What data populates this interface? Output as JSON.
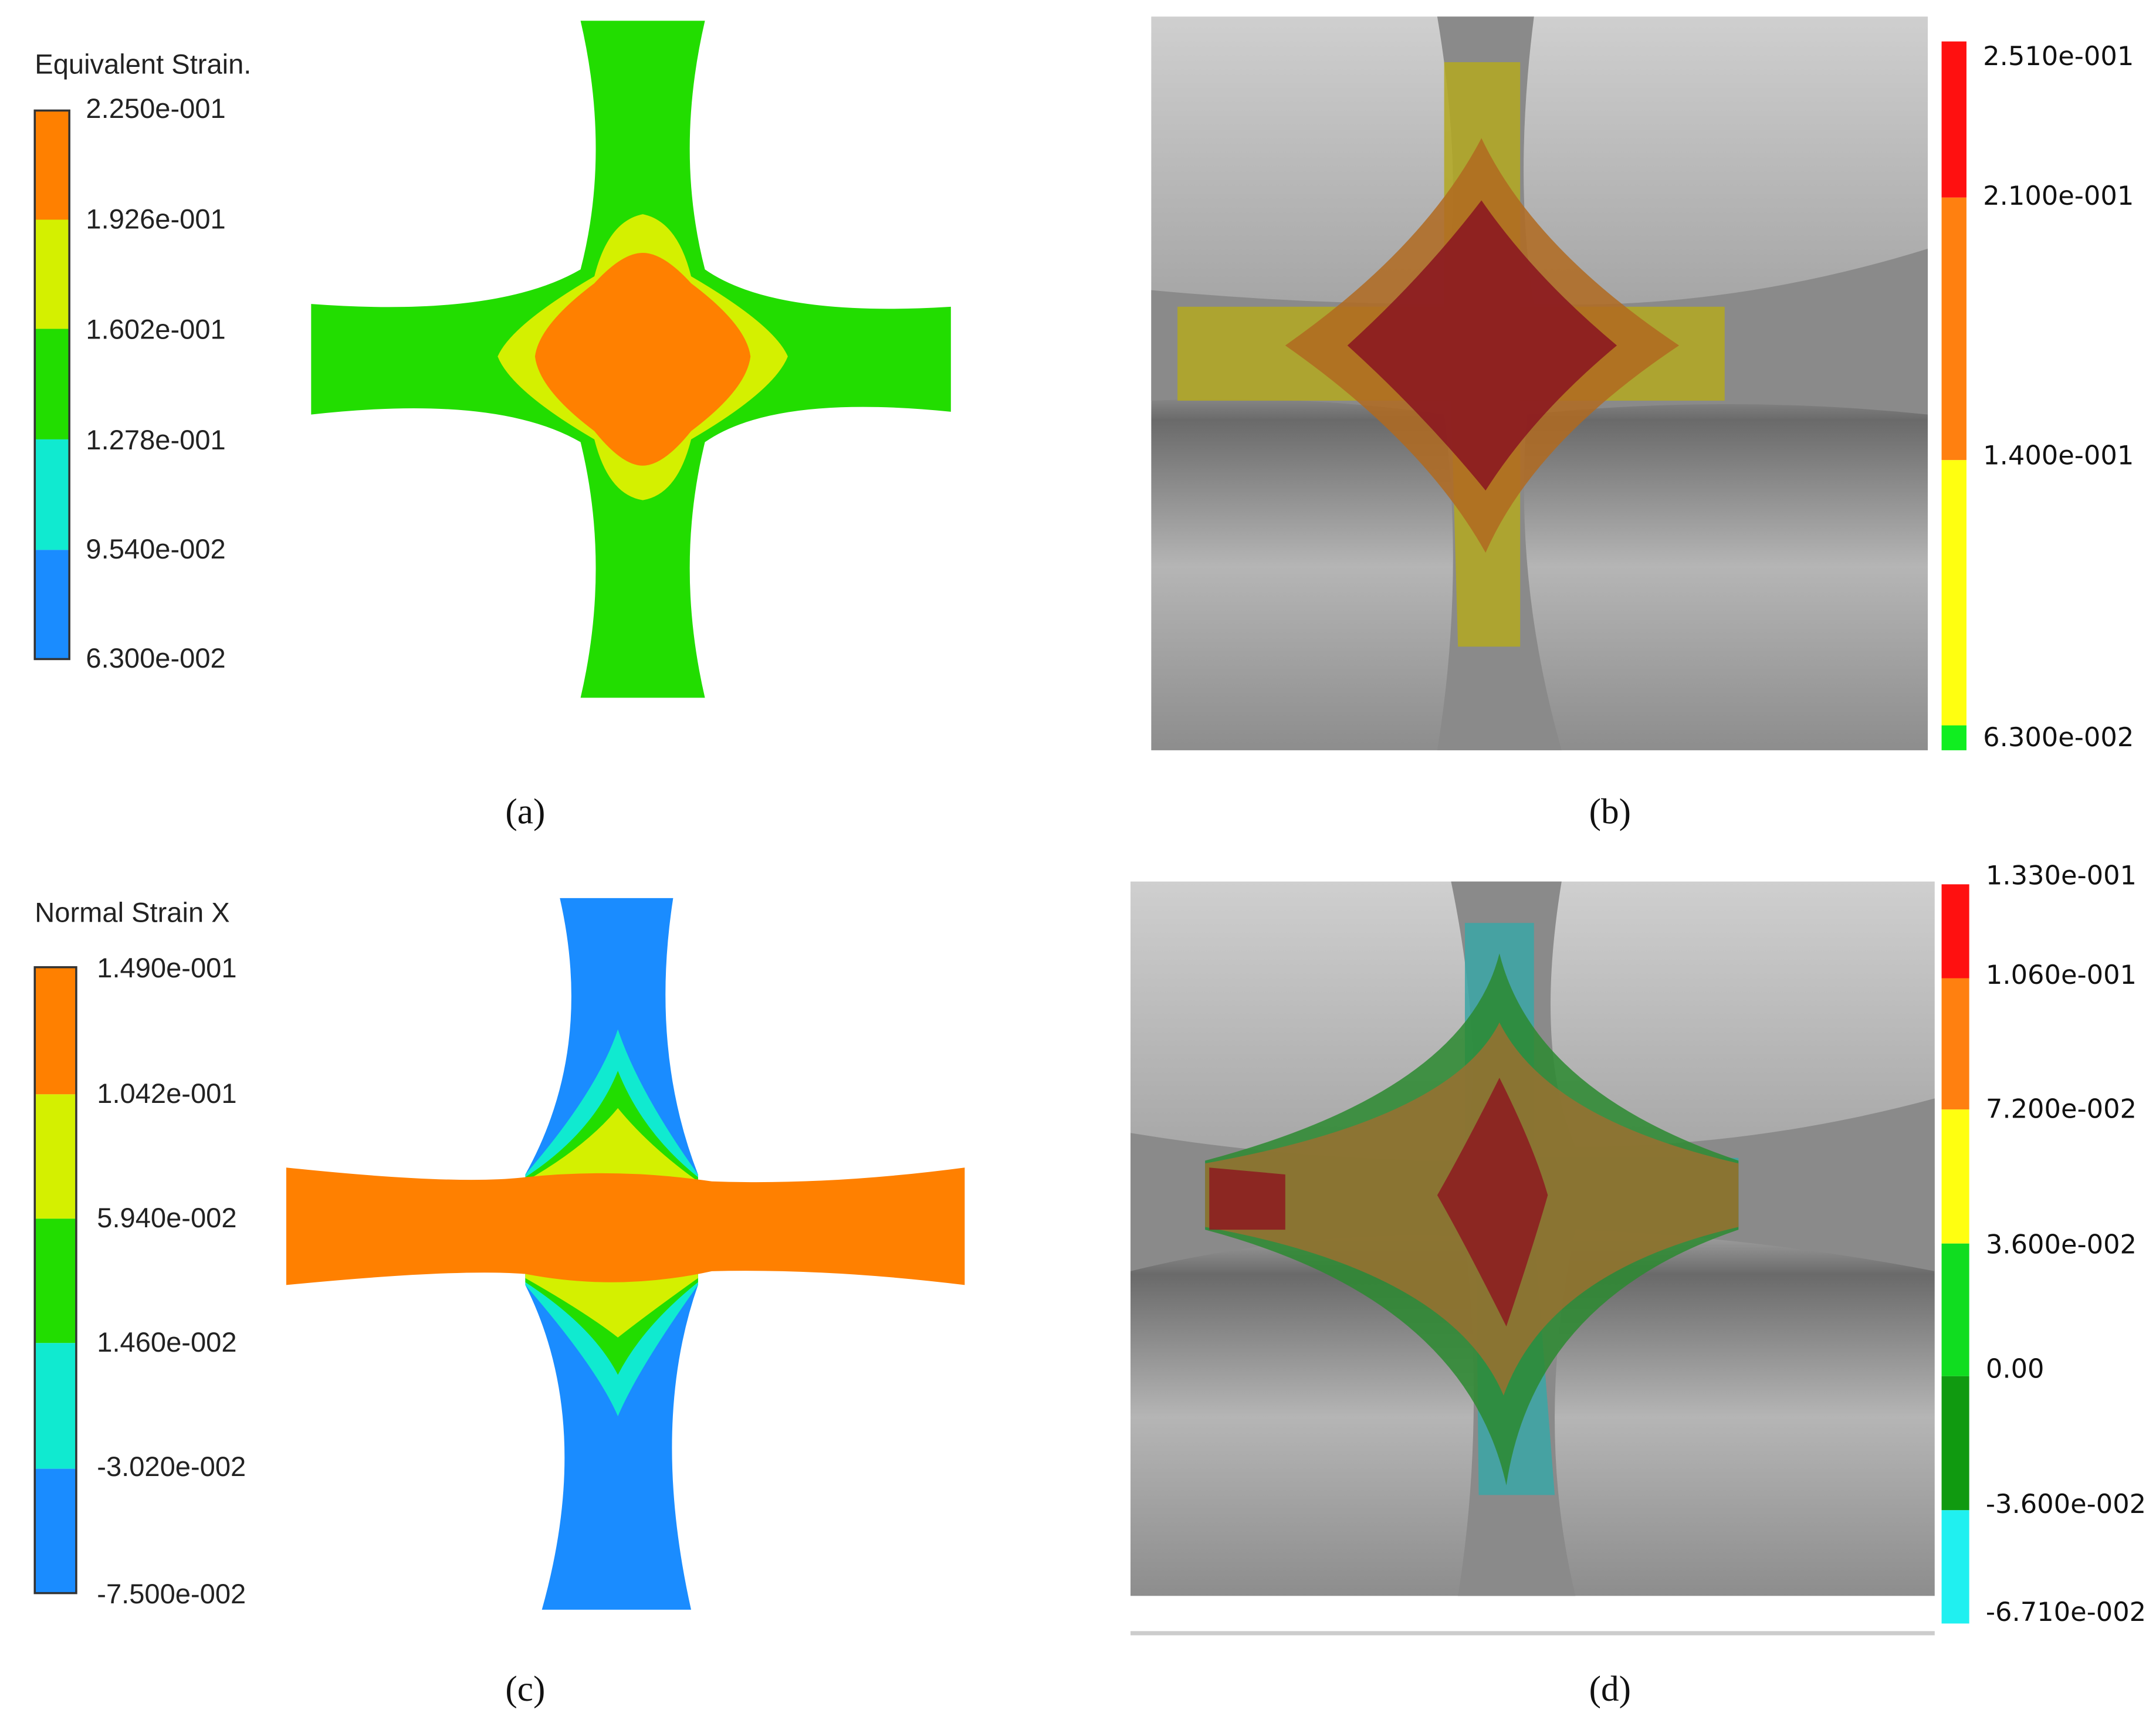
{
  "panels": [
    {
      "caption": "(a)",
      "legend": {
        "title": "Equivalent Strain.",
        "labels": [
          "2.250e-001",
          "1.926e-001",
          "1.602e-001",
          "1.278e-001",
          "9.540e-002",
          "6.300e-002"
        ]
      }
    },
    {
      "caption": "(b)",
      "legend": {
        "labels": [
          "2.510e-001",
          "2.100e-001",
          "1.400e-001",
          "6.300e-002"
        ]
      }
    },
    {
      "caption": "(c)",
      "legend": {
        "title": "Normal Strain X",
        "labels": [
          "1.490e-001",
          "1.042e-001",
          "5.940e-002",
          "1.460e-002",
          "-3.020e-002",
          "-7.500e-002"
        ]
      }
    },
    {
      "caption": "(d)",
      "legend": {
        "labels": [
          "1.330e-001",
          "1.060e-001",
          "7.200e-002",
          "3.600e-002",
          "0.00",
          "-3.600e-002",
          "-6.710e-002"
        ]
      }
    }
  ]
}
